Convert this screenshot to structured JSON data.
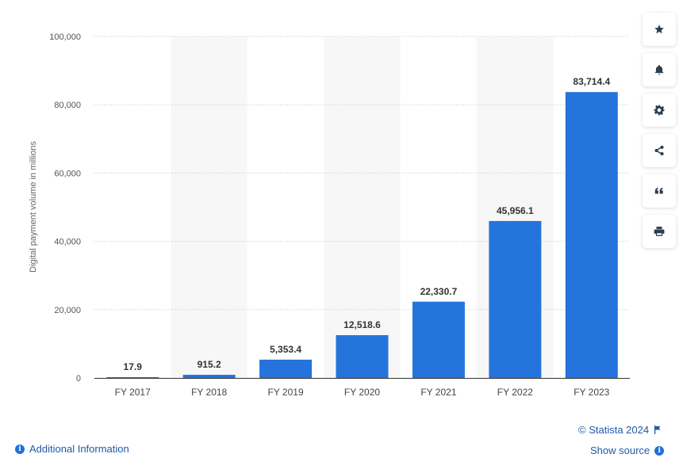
{
  "chart_data": {
    "type": "bar",
    "categories": [
      "FY 2017",
      "FY 2018",
      "FY 2019",
      "FY 2020",
      "FY 2021",
      "FY 2022",
      "FY 2023"
    ],
    "values": [
      17.9,
      915.2,
      5353.4,
      12518.6,
      22330.7,
      45956.1,
      83714.4
    ],
    "value_labels": [
      "17.9",
      "915.2",
      "5,353.4",
      "12,518.6",
      "22,330.7",
      "45,956.1",
      "83,714.4"
    ],
    "ylabel": "Digital payment volume in millions",
    "xlabel": "",
    "ylim": [
      0,
      100000
    ],
    "yticks": [
      0,
      20000,
      40000,
      60000,
      80000,
      100000
    ],
    "ytick_labels": [
      "0",
      "20,000",
      "40,000",
      "60,000",
      "80,000",
      "100,000"
    ],
    "bar_color": "#2574db",
    "grid": true
  },
  "toolbar": {
    "icons": [
      "star-icon",
      "bell-icon",
      "gear-icon",
      "share-icon",
      "quote-icon",
      "print-icon"
    ]
  },
  "footer": {
    "additional_info": "Additional Information",
    "copyright": "© Statista 2024",
    "show_source": "Show source"
  }
}
